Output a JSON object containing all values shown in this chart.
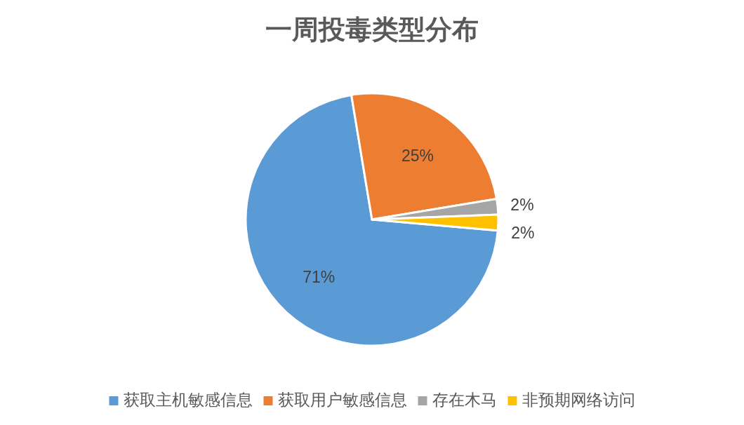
{
  "chart_data": {
    "type": "pie",
    "title": "一周投毒类型分布",
    "categories": [
      "获取主机敏感信息",
      "获取用户敏感信息",
      "存在木马",
      "非预期网络访问"
    ],
    "values": [
      71,
      25,
      2,
      2
    ],
    "colors": [
      "#5b9bd5",
      "#ed7d31",
      "#a5a5a5",
      "#ffc000"
    ],
    "value_labels": [
      "71%",
      "25%",
      "2%",
      "2%"
    ],
    "legend": "bottom"
  }
}
